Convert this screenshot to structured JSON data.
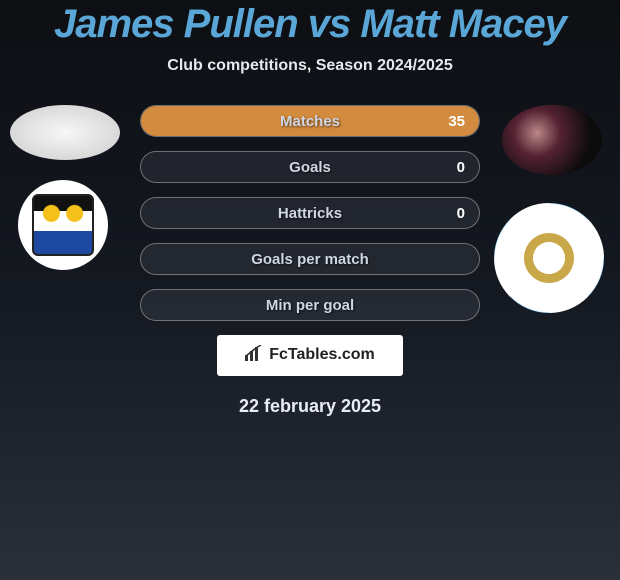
{
  "header": {
    "title": "James Pullen vs Matt Macey",
    "subtitle": "Club competitions, Season 2024/2025"
  },
  "players": {
    "left": {
      "name": "James Pullen"
    },
    "right": {
      "name": "Matt Macey"
    }
  },
  "stats": [
    {
      "label": "Matches",
      "left_pct": 0,
      "right_pct": 100,
      "right_value": "35"
    },
    {
      "label": "Goals",
      "left_pct": 0,
      "right_pct": 0,
      "right_value": "0"
    },
    {
      "label": "Hattricks",
      "left_pct": 0,
      "right_pct": 0,
      "right_value": "0"
    },
    {
      "label": "Goals per match",
      "left_pct": 0,
      "right_pct": 0,
      "right_value": ""
    },
    {
      "label": "Min per goal",
      "left_pct": 0,
      "right_pct": 0,
      "right_value": ""
    }
  ],
  "colors": {
    "title": "#5aa6d6",
    "fill_left": "#6f7b8c",
    "fill_right": "#d38b3f",
    "bg_top": "#0d0f13",
    "bg_mid": "#141820",
    "bg_bottom": "#2a2f3a",
    "text": "#e6e8ee"
  },
  "brand": {
    "logo_text": "FcTables.com"
  },
  "date": "22 february 2025"
}
